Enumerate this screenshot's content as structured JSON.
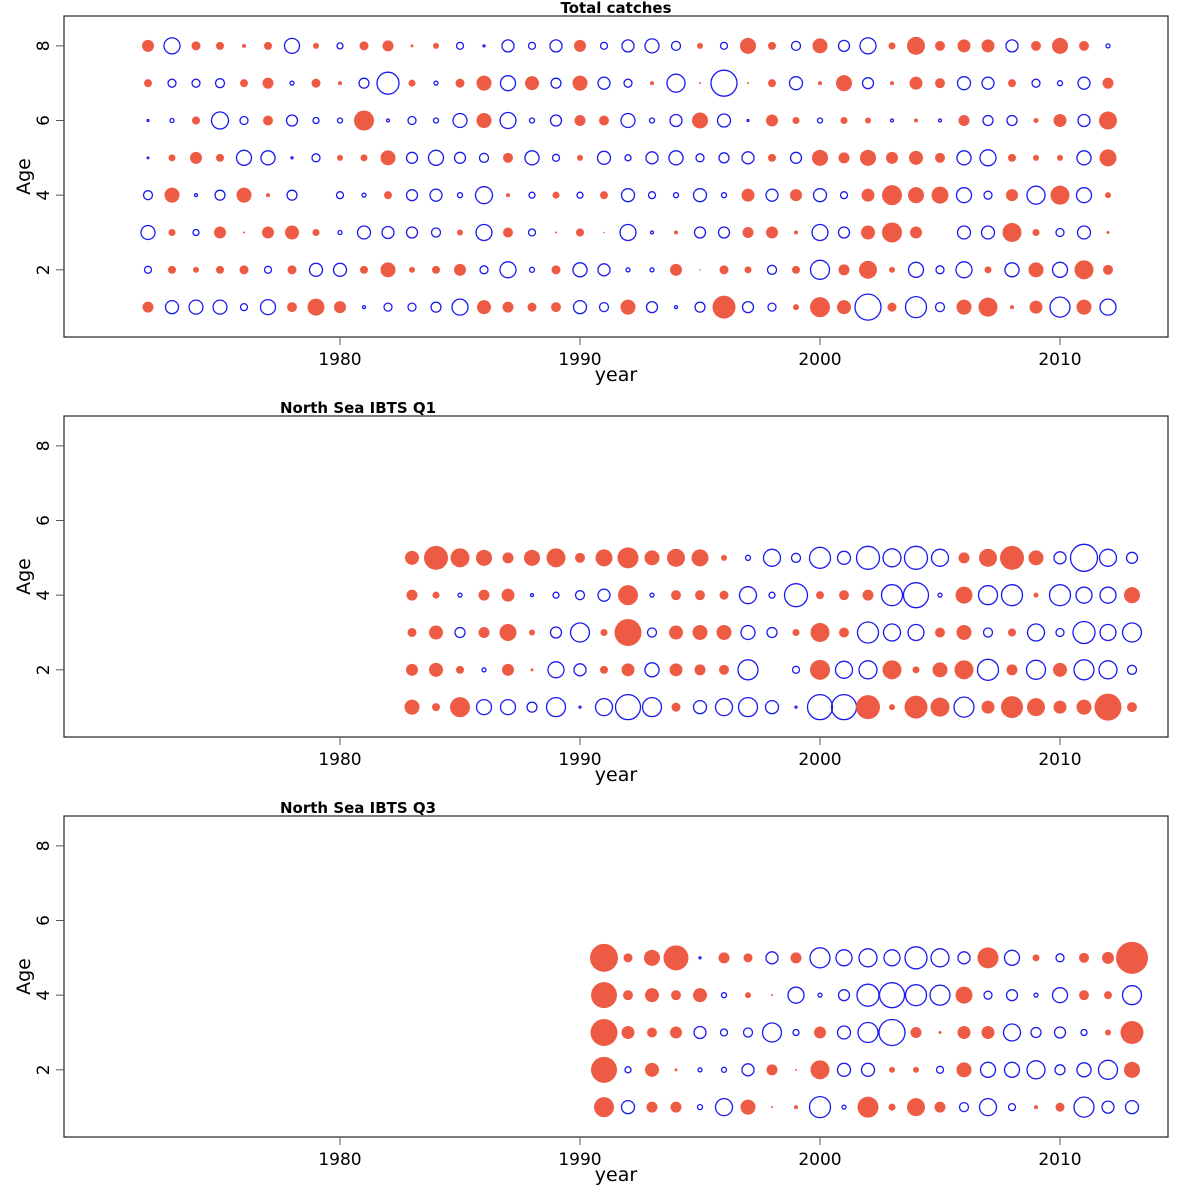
{
  "chart_data": [
    {
      "type": "scatter",
      "subtype": "bubble",
      "title": "Total catches",
      "xlabel": "year",
      "ylabel": "Age",
      "xticks": [
        1980,
        1990,
        2000,
        2010
      ],
      "yticks": [
        2,
        4,
        6,
        8
      ],
      "xlim": [
        1968.5,
        2014.5
      ],
      "ylim": [
        0.2,
        8.8
      ],
      "encoding": "value>0 filled red circle, value<0 open blue circle; radius proportional to |value|",
      "colors": {
        "positive": "#EE5B44",
        "negative": "#1A1AF0"
      },
      "years": [
        1972,
        1973,
        1974,
        1975,
        1976,
        1977,
        1978,
        1979,
        1980,
        1981,
        1982,
        1983,
        1984,
        1985,
        1986,
        1987,
        1988,
        1989,
        1990,
        1991,
        1992,
        1993,
        1994,
        1995,
        1996,
        1997,
        1998,
        1999,
        2000,
        2001,
        2002,
        2003,
        2004,
        2005,
        2006,
        2007,
        2008,
        2009,
        2010,
        2011,
        2012
      ],
      "ages": [
        1,
        2,
        3,
        4,
        5,
        6,
        7,
        8
      ],
      "series": [
        {
          "age": 8,
          "values": [
            6,
            -8,
            4.5,
            4,
            2,
            4,
            -7.5,
            3,
            -3,
            4.5,
            5.5,
            1.5,
            3,
            -3.5,
            -1,
            -6,
            -3.5,
            -6,
            6,
            -3.5,
            -6,
            -7,
            -4.5,
            3,
            -3.5,
            8,
            4,
            -4.5,
            7.5,
            -5.5,
            -8,
            3.5,
            9,
            5,
            6.5,
            6.5,
            -6,
            5,
            8,
            5,
            -2
          ]
        },
        {
          "age": 7,
          "values": [
            4,
            -4,
            -4,
            -4.5,
            4,
            5.5,
            -2,
            4.5,
            2,
            -5,
            -11,
            3.5,
            -2,
            4.5,
            7.5,
            -7.5,
            7,
            -5,
            7.5,
            -6,
            -4,
            2,
            -9,
            1,
            -13,
            1,
            4,
            -6.5,
            2,
            8,
            -5.5,
            2,
            6.5,
            5,
            -6.5,
            -6,
            4,
            -4,
            -2.5,
            -6,
            5.5
          ]
        },
        {
          "age": 6,
          "values": [
            -1,
            -2,
            4,
            -8.5,
            -4,
            5,
            -5.5,
            -3,
            -2.5,
            10,
            -1.5,
            -4,
            -2.5,
            -7,
            7.5,
            -8,
            -2.5,
            -5.5,
            5.5,
            5,
            -7,
            -2.5,
            -6,
            8,
            -6.5,
            -1,
            6,
            3.5,
            -2.5,
            3.5,
            3,
            -1.5,
            2,
            -1.5,
            5.5,
            -5,
            -5,
            2.5,
            6.5,
            -6,
            9
          ]
        },
        {
          "age": 5,
          "values": [
            -0.7,
            3.5,
            6,
            4,
            -7.5,
            -7,
            -1,
            -4,
            3,
            3.5,
            7.5,
            -5.5,
            -7.5,
            -5.5,
            -4.5,
            5,
            -7,
            -3.5,
            3,
            -6.5,
            -3,
            -6,
            -7,
            -4,
            -5,
            -6,
            4,
            -5.5,
            8,
            5.5,
            8,
            6,
            7,
            5,
            -7,
            -8,
            4,
            3,
            3,
            -7,
            8.5
          ]
        },
        {
          "age": 4,
          "values": [
            -4.5,
            7.5,
            -1.5,
            -5,
            7.5,
            2,
            -5,
            0,
            -3.5,
            -2,
            4,
            -5.5,
            -6,
            -2.5,
            -8.5,
            2,
            -3,
            3.5,
            -3,
            4,
            -6.5,
            -3.5,
            -2.5,
            -6.5,
            -2.5,
            6.5,
            -6,
            6,
            -6.5,
            -3.5,
            6.5,
            10,
            8,
            8.5,
            -7.5,
            -4,
            6,
            -9,
            9.5,
            -7.5,
            3
          ]
        },
        {
          "age": 3,
          "values": [
            -7,
            3.5,
            -3,
            6,
            1,
            6,
            7,
            3.5,
            -2,
            -6.5,
            -6,
            -5.5,
            -4.5,
            3,
            -8,
            5,
            -3.5,
            1,
            4,
            0.5,
            -8,
            -1.5,
            2,
            -5.5,
            -5.5,
            5.5,
            6,
            2,
            -8,
            -5.5,
            7,
            10,
            6,
            0,
            -6.5,
            -6.5,
            9.5,
            3.5,
            -4,
            -6.5,
            1.5
          ]
        },
        {
          "age": 2,
          "values": [
            -3.5,
            4,
            3,
            4,
            4.5,
            -3.5,
            4.5,
            -6.5,
            -6.5,
            4,
            7.5,
            3,
            4,
            6,
            -4,
            -8,
            -2.5,
            4.5,
            -7,
            -6,
            -2,
            -2,
            6,
            0.5,
            4.5,
            3.5,
            -4.5,
            4,
            -9.5,
            5.5,
            9,
            3,
            -7.5,
            -4,
            -8,
            3.5,
            -7,
            7.5,
            -7.5,
            9.5,
            5
          ]
        },
        {
          "age": 1,
          "values": [
            5.5,
            -6.5,
            -7,
            -7,
            -3.5,
            -7.5,
            5,
            8.5,
            6,
            -1.5,
            -4,
            -4,
            -5,
            -8,
            7,
            5.5,
            4.5,
            5,
            -6.5,
            -4.5,
            7.5,
            -5.5,
            -1.5,
            -5,
            11.5,
            -5.5,
            -4,
            3,
            10,
            7,
            -13,
            4.5,
            -10.5,
            -4.5,
            7.5,
            9.5,
            2,
            6.5,
            -10,
            7.5,
            -8
          ]
        }
      ]
    },
    {
      "type": "scatter",
      "subtype": "bubble",
      "title": "North Sea IBTS Q1",
      "xlabel": "year",
      "ylabel": "Age",
      "xticks": [
        1980,
        1990,
        2000,
        2010
      ],
      "yticks": [
        2,
        4,
        6,
        8
      ],
      "xlim": [
        1968.5,
        2014.5
      ],
      "ylim": [
        0.2,
        8.8
      ],
      "encoding": "value>0 filled red circle, value<0 open blue circle; radius proportional to |value|",
      "colors": {
        "positive": "#EE5B44",
        "negative": "#1A1AF0"
      },
      "years": [
        1983,
        1984,
        1985,
        1986,
        1987,
        1988,
        1989,
        1990,
        1991,
        1992,
        1993,
        1994,
        1995,
        1996,
        1997,
        1998,
        1999,
        2000,
        2001,
        2002,
        2003,
        2004,
        2005,
        2006,
        2007,
        2008,
        2009,
        2010,
        2011,
        2012,
        2013
      ],
      "ages": [
        1,
        2,
        3,
        4,
        5
      ],
      "series": [
        {
          "age": 5,
          "values": [
            7,
            12,
            9.5,
            8,
            5.5,
            8,
            9.5,
            5,
            8.5,
            10.5,
            7.5,
            9,
            8.5,
            3,
            -2.5,
            -8.5,
            -4.5,
            -10.5,
            -6.5,
            -11.5,
            -9,
            -11.5,
            -8.5,
            5.5,
            9,
            12,
            7.5,
            -6,
            -13.5,
            -8.5,
            -5.5
          ]
        },
        {
          "age": 4,
          "values": [
            5.5,
            3.5,
            -2,
            5.5,
            6.5,
            -1.5,
            -3,
            -4.5,
            -6,
            10,
            -2,
            5,
            5,
            4.5,
            -8.5,
            -3,
            -11.5,
            4,
            5,
            5.5,
            -10.5,
            -12.5,
            -2,
            8.5,
            -9.5,
            -10.5,
            2.5,
            -10.5,
            -8,
            -8,
            8
          ]
        },
        {
          "age": 3,
          "values": [
            4.5,
            7,
            -5,
            5.5,
            8.5,
            3,
            -5.5,
            -9.5,
            3.5,
            13.5,
            -4.5,
            7,
            7.5,
            7.5,
            -7,
            -5,
            3.5,
            9.5,
            5,
            -10.5,
            -8.5,
            -8,
            5,
            7.5,
            -4.5,
            4,
            -8.5,
            -4,
            -11,
            -8,
            -9.5
          ]
        },
        {
          "age": 2,
          "values": [
            6,
            7,
            4,
            -2,
            6,
            1.5,
            -8,
            -6,
            4,
            6.5,
            -7,
            6.5,
            5.5,
            5,
            -10,
            0,
            -3.5,
            10,
            -8.5,
            -9,
            9.5,
            3.5,
            7.5,
            9.5,
            -10.5,
            5.5,
            -9.5,
            7,
            -10,
            -9,
            -4.5
          ]
        },
        {
          "age": 1,
          "values": [
            7.5,
            4,
            10,
            -7.5,
            -7.5,
            -5,
            -9.5,
            -1,
            -8.5,
            -12.5,
            -9.5,
            4.5,
            -6.5,
            -8.5,
            -9.5,
            -6.5,
            -1,
            -12.5,
            -12.5,
            12,
            3,
            11.5,
            9.5,
            -10,
            6.5,
            11,
            9,
            6.5,
            7.5,
            13.5,
            5
          ]
        }
      ]
    },
    {
      "type": "scatter",
      "subtype": "bubble",
      "title": "North Sea IBTS Q3",
      "xlabel": "year",
      "ylabel": "Age",
      "xticks": [
        1980,
        1990,
        2000,
        2010
      ],
      "yticks": [
        2,
        4,
        6,
        8
      ],
      "xlim": [
        1968.5,
        2014.5
      ],
      "ylim": [
        0.2,
        8.8
      ],
      "encoding": "value>0 filled red circle, value<0 open blue circle; radius proportional to |value|",
      "colors": {
        "positive": "#EE5B44",
        "negative": "#1A1AF0"
      },
      "years": [
        1991,
        1992,
        1993,
        1994,
        1995,
        1996,
        1997,
        1998,
        1999,
        2000,
        2001,
        2002,
        2003,
        2004,
        2005,
        2006,
        2007,
        2008,
        2009,
        2010,
        2011,
        2012,
        2013
      ],
      "ages": [
        1,
        2,
        3,
        4,
        5
      ],
      "series": [
        {
          "age": 5,
          "values": [
            14,
            4.5,
            8,
            12.5,
            -1,
            5.5,
            4.5,
            -6,
            5.5,
            -10,
            -8,
            -9,
            -8,
            -11,
            -9,
            -6,
            10.5,
            -7.5,
            3.5,
            -4,
            5,
            6,
            16
          ]
        },
        {
          "age": 4,
          "values": [
            13,
            5,
            7,
            5,
            7,
            -2.5,
            3,
            1,
            -8,
            -2,
            -5.5,
            -11,
            -12.5,
            -10.5,
            -10,
            8.5,
            -4,
            -5.5,
            -2,
            -7.5,
            5,
            4,
            -9.5
          ]
        },
        {
          "age": 3,
          "values": [
            13.5,
            6.5,
            5,
            6,
            -6,
            -3.5,
            -4.5,
            -9.5,
            -3,
            6,
            -6.5,
            -10,
            -13,
            5.5,
            1.5,
            6.5,
            6.5,
            -8.5,
            -5,
            -5.5,
            -3,
            3,
            11.5
          ]
        },
        {
          "age": 2,
          "values": [
            13,
            -3,
            7,
            1.5,
            -2,
            -2.5,
            -6,
            5.5,
            1,
            9.5,
            -6.5,
            -6.5,
            3,
            3,
            -3.5,
            7.5,
            -7.5,
            -7.5,
            -9,
            -5,
            -7,
            -9.5,
            8
          ]
        },
        {
          "age": 1,
          "values": [
            10,
            -6.5,
            5.5,
            5.5,
            -2.5,
            -8.5,
            7.5,
            1,
            2,
            -10.5,
            -2,
            10.5,
            3.5,
            9,
            5.5,
            -4.5,
            -8.5,
            -3.5,
            2,
            4.5,
            -10,
            -6,
            -6.5
          ]
        }
      ]
    }
  ]
}
